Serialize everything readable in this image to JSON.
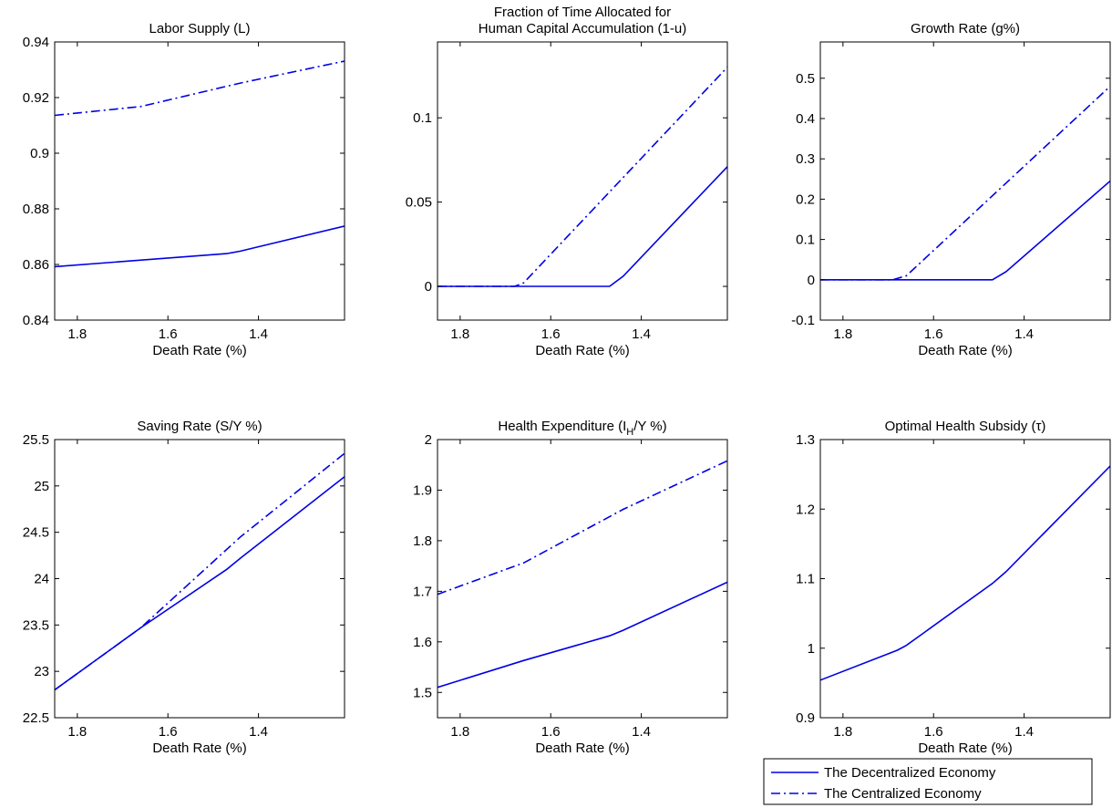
{
  "colors": {
    "series": "#0000e6",
    "axes": "#000000",
    "background": "#ffffff"
  },
  "legend": {
    "placement": "bottom-right",
    "entries": [
      {
        "label": "The Decentralized Economy",
        "style": "solid"
      },
      {
        "label": "The Centralized Economy",
        "style": "dashdot"
      }
    ]
  },
  "chart_data": [
    {
      "type": "line",
      "title": "Labor Supply (L)",
      "xlabel": "Death Rate (%)",
      "x_reversed": true,
      "xlim": [
        1.85,
        1.21
      ],
      "ylim": [
        0.84,
        0.94
      ],
      "xticks": [
        1.8,
        1.6,
        1.4
      ],
      "xtick_labels": [
        "1.8",
        "1.6",
        "1.4"
      ],
      "yticks": [
        0.84,
        0.86,
        0.88,
        0.9,
        0.92,
        0.94
      ],
      "ytick_labels": [
        "0.84",
        "0.86",
        "0.88",
        "0.9",
        "0.92",
        "0.94"
      ],
      "series": [
        {
          "name": "The Decentralized Economy",
          "style": "solid",
          "x": [
            1.85,
            1.47,
            1.44,
            1.21
          ],
          "y": [
            0.8592,
            0.8639,
            0.8648,
            0.8738
          ]
        },
        {
          "name": "The Centralized Economy",
          "style": "dashdot",
          "x": [
            1.85,
            1.66,
            1.44,
            1.21
          ],
          "y": [
            0.9136,
            0.9168,
            0.9252,
            0.9331
          ]
        }
      ]
    },
    {
      "type": "line",
      "title": "Fraction of Time Allocated for\nHuman Capital Accumulation (1-u)",
      "xlabel": "Death Rate (%)",
      "x_reversed": true,
      "xlim": [
        1.85,
        1.21
      ],
      "ylim": [
        -0.02,
        0.145
      ],
      "xticks": [
        1.8,
        1.6,
        1.4
      ],
      "xtick_labels": [
        "1.8",
        "1.6",
        "1.4"
      ],
      "yticks": [
        0,
        0.05,
        0.1
      ],
      "ytick_labels": [
        "0",
        "0.05",
        "0.1"
      ],
      "series": [
        {
          "name": "The Decentralized Economy",
          "style": "solid",
          "x": [
            1.85,
            1.47,
            1.44,
            1.21
          ],
          "y": [
            0,
            0,
            0.006,
            0.071
          ]
        },
        {
          "name": "The Centralized Economy",
          "style": "dashdot",
          "x": [
            1.85,
            1.68,
            1.66,
            1.21
          ],
          "y": [
            0,
            0,
            0.002,
            0.13
          ]
        }
      ]
    },
    {
      "type": "line",
      "title": "Growth Rate (g%)",
      "xlabel": "Death Rate (%)",
      "x_reversed": true,
      "xlim": [
        1.85,
        1.21
      ],
      "ylim": [
        -0.1,
        0.59
      ],
      "xticks": [
        1.8,
        1.6,
        1.4
      ],
      "xtick_labels": [
        "1.8",
        "1.6",
        "1.4"
      ],
      "yticks": [
        -0.1,
        0,
        0.1,
        0.2,
        0.3,
        0.4,
        0.5
      ],
      "ytick_labels": [
        "-0.1",
        "0",
        "0.1",
        "0.2",
        "0.3",
        "0.4",
        "0.5"
      ],
      "series": [
        {
          "name": "The Decentralized Economy",
          "style": "solid",
          "x": [
            1.85,
            1.47,
            1.44,
            1.21
          ],
          "y": [
            0,
            0,
            0.02,
            0.245
          ]
        },
        {
          "name": "The Centralized Economy",
          "style": "dashdot",
          "x": [
            1.85,
            1.69,
            1.66,
            1.21
          ],
          "y": [
            0,
            0,
            0.01,
            0.48
          ]
        }
      ]
    },
    {
      "type": "line",
      "title": "Saving Rate (S/Y %)",
      "xlabel": "Death Rate (%)",
      "x_reversed": true,
      "xlim": [
        1.85,
        1.21
      ],
      "ylim": [
        22.5,
        25.5
      ],
      "xticks": [
        1.8,
        1.6,
        1.4
      ],
      "xtick_labels": [
        "1.8",
        "1.6",
        "1.4"
      ],
      "yticks": [
        22.5,
        23,
        23.5,
        24,
        24.5,
        25,
        25.5
      ],
      "ytick_labels": [
        "22.5",
        "23",
        "23.5",
        "24",
        "24.5",
        "25",
        "25.5"
      ],
      "series": [
        {
          "name": "The Decentralized Economy",
          "style": "solid",
          "x": [
            1.85,
            1.66,
            1.47,
            1.44,
            1.21
          ],
          "y": [
            22.8,
            23.47,
            24.1,
            24.22,
            25.1
          ]
        },
        {
          "name": "The Centralized Economy",
          "style": "dashdot",
          "x": [
            1.85,
            1.66,
            1.44,
            1.21
          ],
          "y": [
            22.8,
            23.47,
            24.45,
            25.35
          ]
        }
      ]
    },
    {
      "type": "line",
      "title": "Health Expenditure (I_H/Y %)",
      "title_main": "Health Expenditure (I",
      "title_sub": "H",
      "title_tail": "/Y %)",
      "xlabel": "Death Rate (%)",
      "x_reversed": true,
      "xlim": [
        1.85,
        1.21
      ],
      "ylim": [
        1.45,
        2.0
      ],
      "xticks": [
        1.8,
        1.6,
        1.4
      ],
      "xtick_labels": [
        "1.8",
        "1.6",
        "1.4"
      ],
      "yticks": [
        1.5,
        1.6,
        1.7,
        1.8,
        1.9,
        2.0
      ],
      "ytick_labels": [
        "1.5",
        "1.6",
        "1.7",
        "1.8",
        "1.9",
        "2"
      ],
      "series": [
        {
          "name": "The Decentralized Economy",
          "style": "solid",
          "x": [
            1.85,
            1.66,
            1.47,
            1.44,
            1.21
          ],
          "y": [
            1.51,
            1.563,
            1.612,
            1.623,
            1.718
          ]
        },
        {
          "name": "The Centralized Economy",
          "style": "dashdot",
          "x": [
            1.85,
            1.66,
            1.44,
            1.21
          ],
          "y": [
            1.694,
            1.756,
            1.862,
            1.958
          ]
        }
      ]
    },
    {
      "type": "line",
      "title": "Optimal Health Subsidy (τ)",
      "xlabel": "Death Rate (%)",
      "x_reversed": true,
      "xlim": [
        1.85,
        1.21
      ],
      "ylim": [
        0.9,
        1.3
      ],
      "xticks": [
        1.8,
        1.6,
        1.4
      ],
      "xtick_labels": [
        "1.8",
        "1.6",
        "1.4"
      ],
      "yticks": [
        0.9,
        1.0,
        1.1,
        1.2,
        1.3
      ],
      "ytick_labels": [
        "0.9",
        "1",
        "1.1",
        "1.2",
        "1.3"
      ],
      "series": [
        {
          "name": "The Decentralized Economy",
          "style": "solid",
          "x": [
            1.85,
            1.68,
            1.66,
            1.47,
            1.44,
            1.21
          ],
          "y": [
            0.954,
            0.997,
            1.004,
            1.093,
            1.11,
            1.262
          ]
        }
      ]
    }
  ]
}
